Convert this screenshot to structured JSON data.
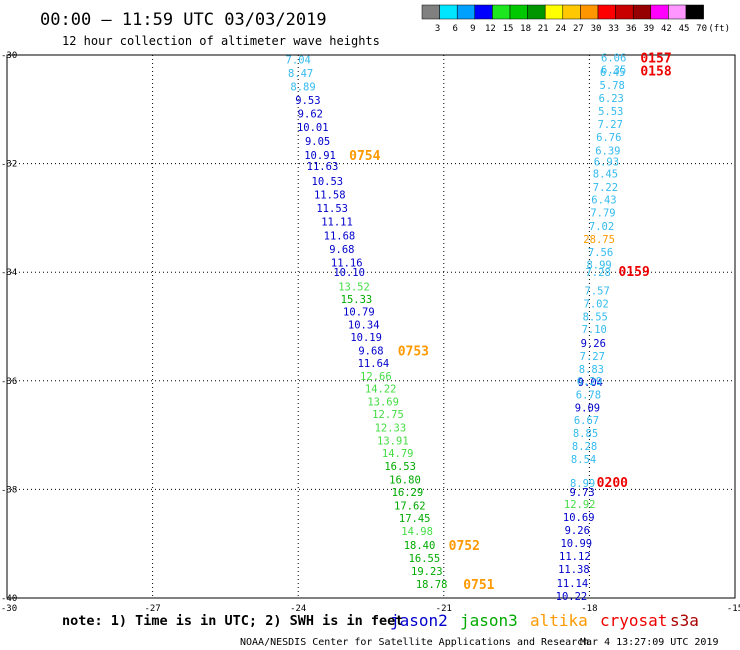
{
  "header": {
    "title": "00:00 – 11:59 UTC 03/03/2019",
    "subtitle": "12 hour collection of altimeter wave heights"
  },
  "color_scale": {
    "labels": [
      "3",
      "6",
      "9",
      "12",
      "15",
      "18",
      "21",
      "24",
      "27",
      "30",
      "33",
      "36",
      "39",
      "42",
      "45",
      "70",
      "(ft)"
    ],
    "colors": [
      "#808080",
      "#00e6ff",
      "#00a0ff",
      "#0000ff",
      "#1ee61e",
      "#00c800",
      "#009600",
      "#ffff00",
      "#ffc800",
      "#ff9600",
      "#ff0000",
      "#c80000",
      "#960000",
      "#ff00ff",
      "#ff96ff",
      "#000000"
    ]
  },
  "footer": {
    "note": "note: 1) Time is in UTC; 2) SWH is in feet",
    "legend": [
      {
        "label": "jason2",
        "color": "#0000cc"
      },
      {
        "label": "jason3",
        "color": "#00aa00"
      },
      {
        "label": "altika",
        "color": "#ff9900"
      },
      {
        "label": "cryosat",
        "color": "#ee0000"
      },
      {
        "label": "s3a",
        "color": "#aa0000"
      }
    ],
    "credit": "NOAA/NESDIS Center for Satellite Applications and Research",
    "timestamp": "Mar 4 13:27:09 UTC 2019"
  },
  "chart_data": {
    "type": "scatter",
    "xlim": [
      -30,
      -15
    ],
    "ylim": [
      -40,
      -30
    ],
    "x_ticks": [
      "-30",
      "-27",
      "-24",
      "-21",
      "-18",
      "-15"
    ],
    "y_ticks": [
      "-30",
      "-32",
      "-34",
      "-36",
      "-38",
      "-40"
    ],
    "grid": true,
    "series": [
      {
        "name": "track-west",
        "points": [
          {
            "x": -24.0,
            "y": -30.08,
            "v": "7.04",
            "c": "#33bbee"
          },
          {
            "x": -23.95,
            "y": -30.33,
            "v": "8.47",
            "c": "#33bbee"
          },
          {
            "x": -23.9,
            "y": -30.58,
            "v": "8.89",
            "c": "#33bbee"
          },
          {
            "x": -23.8,
            "y": -30.83,
            "v": "9.53",
            "c": "#0000cc"
          },
          {
            "x": -23.75,
            "y": -31.08,
            "v": "9.62",
            "c": "#0000cc"
          },
          {
            "x": -23.7,
            "y": -31.33,
            "v": "10.01",
            "c": "#0000cc"
          },
          {
            "x": -23.6,
            "y": -31.58,
            "v": "9.05",
            "c": "#0000cc"
          },
          {
            "x": -23.55,
            "y": -31.84,
            "v": "10.91",
            "c": "#0000cc"
          },
          {
            "x": -23.5,
            "y": -32.04,
            "v": "11.63",
            "c": "#0000cc"
          },
          {
            "x": -23.4,
            "y": -32.32,
            "v": "10.53",
            "c": "#0000cc"
          },
          {
            "x": -23.35,
            "y": -32.57,
            "v": "11.58",
            "c": "#0000cc"
          },
          {
            "x": -23.3,
            "y": -32.82,
            "v": "11.53",
            "c": "#0000cc"
          },
          {
            "x": -23.2,
            "y": -33.07,
            "v": "11.11",
            "c": "#0000cc"
          },
          {
            "x": -23.15,
            "y": -33.32,
            "v": "11.68",
            "c": "#0000cc"
          },
          {
            "x": -23.1,
            "y": -33.57,
            "v": "9.68",
            "c": "#0000cc"
          },
          {
            "x": -23.0,
            "y": -33.82,
            "v": "11.16",
            "c": "#0000cc"
          },
          {
            "x": -22.95,
            "y": -34.0,
            "v": "10.10",
            "c": "#0000cc"
          },
          {
            "x": -22.85,
            "y": -34.26,
            "v": "13.52",
            "c": "#44dd44"
          },
          {
            "x": -22.8,
            "y": -34.49,
            "v": "15.33",
            "c": "#00aa00"
          },
          {
            "x": -22.75,
            "y": -34.72,
            "v": "10.79",
            "c": "#0000cc"
          },
          {
            "x": -22.65,
            "y": -34.96,
            "v": "10.34",
            "c": "#0000cc"
          },
          {
            "x": -22.6,
            "y": -35.19,
            "v": "10.19",
            "c": "#0000cc"
          },
          {
            "x": -22.5,
            "y": -35.44,
            "v": "9.68",
            "c": "#0000cc"
          },
          {
            "x": -22.45,
            "y": -35.67,
            "v": "11.64",
            "c": "#0000cc"
          },
          {
            "x": -22.4,
            "y": -35.91,
            "v": "12.66",
            "c": "#44dd44"
          },
          {
            "x": -22.3,
            "y": -36.14,
            "v": "14.22",
            "c": "#44dd44"
          },
          {
            "x": -22.25,
            "y": -36.38,
            "v": "13.69",
            "c": "#44dd44"
          },
          {
            "x": -22.15,
            "y": -36.61,
            "v": "12.75",
            "c": "#44dd44"
          },
          {
            "x": -22.1,
            "y": -36.86,
            "v": "12.33",
            "c": "#44dd44"
          },
          {
            "x": -22.05,
            "y": -37.1,
            "v": "13.91",
            "c": "#44dd44"
          },
          {
            "x": -21.95,
            "y": -37.33,
            "v": "14.79",
            "c": "#44dd44"
          },
          {
            "x": -21.9,
            "y": -37.57,
            "v": "16.53",
            "c": "#00aa00"
          },
          {
            "x": -21.8,
            "y": -37.82,
            "v": "16.80",
            "c": "#00aa00"
          },
          {
            "x": -21.75,
            "y": -38.05,
            "v": "16.29",
            "c": "#00aa00"
          },
          {
            "x": -21.7,
            "y": -38.3,
            "v": "17.62",
            "c": "#00aa00"
          },
          {
            "x": -21.6,
            "y": -38.53,
            "v": "17.45",
            "c": "#00aa00"
          },
          {
            "x": -21.55,
            "y": -38.77,
            "v": "14.98",
            "c": "#44dd44"
          },
          {
            "x": -21.5,
            "y": -39.02,
            "v": "18.40",
            "c": "#00aa00"
          },
          {
            "x": -21.4,
            "y": -39.26,
            "v": "16.55",
            "c": "#00aa00"
          },
          {
            "x": -21.35,
            "y": -39.5,
            "v": "19.23",
            "c": "#00aa00"
          },
          {
            "x": -21.25,
            "y": -39.74,
            "v": "18.78",
            "c": "#00aa00"
          }
        ]
      },
      {
        "name": "track-east",
        "points": [
          {
            "x": -17.5,
            "y": -30.05,
            "v": "6.06",
            "c": "#33bbee"
          },
          {
            "x": -17.5,
            "y": -30.27,
            "v": "6.35",
            "c": "#33bbee"
          },
          {
            "x": -17.52,
            "y": -30.31,
            "v": "6.45",
            "c": "#33bbee"
          },
          {
            "x": -17.53,
            "y": -30.55,
            "v": "5.78",
            "c": "#33bbee"
          },
          {
            "x": -17.55,
            "y": -30.79,
            "v": "6.23",
            "c": "#33bbee"
          },
          {
            "x": -17.56,
            "y": -31.03,
            "v": "5.53",
            "c": "#33bbee"
          },
          {
            "x": -17.57,
            "y": -31.27,
            "v": "7.27",
            "c": "#33bbee"
          },
          {
            "x": -17.6,
            "y": -31.51,
            "v": "6.76",
            "c": "#33bbee"
          },
          {
            "x": -17.62,
            "y": -31.76,
            "v": "6.39",
            "c": "#33bbee"
          },
          {
            "x": -17.65,
            "y": -31.96,
            "v": "6.93",
            "c": "#33bbee"
          },
          {
            "x": -17.67,
            "y": -32.18,
            "v": "8.45",
            "c": "#33bbee"
          },
          {
            "x": -17.67,
            "y": -32.43,
            "v": "7.22",
            "c": "#33bbee"
          },
          {
            "x": -17.7,
            "y": -32.66,
            "v": "6.43",
            "c": "#33bbee"
          },
          {
            "x": -17.72,
            "y": -32.9,
            "v": "7.79",
            "c": "#33bbee"
          },
          {
            "x": -17.75,
            "y": -33.15,
            "v": "7.02",
            "c": "#33bbee"
          },
          {
            "x": -17.8,
            "y": -33.39,
            "v": "28.75",
            "c": "#ff9900"
          },
          {
            "x": -17.77,
            "y": -33.63,
            "v": "7.56",
            "c": "#33bbee"
          },
          {
            "x": -17.8,
            "y": -33.86,
            "v": "8.99",
            "c": "#33bbee"
          },
          {
            "x": -17.82,
            "y": -34.0,
            "v": "7.28",
            "c": "#33bbee"
          },
          {
            "x": -17.84,
            "y": -34.34,
            "v": "7.57",
            "c": "#33bbee"
          },
          {
            "x": -17.86,
            "y": -34.58,
            "v": "7.02",
            "c": "#33bbee"
          },
          {
            "x": -17.88,
            "y": -34.82,
            "v": "8.55",
            "c": "#33bbee"
          },
          {
            "x": -17.9,
            "y": -35.05,
            "v": "7.10",
            "c": "#33bbee"
          },
          {
            "x": -17.92,
            "y": -35.3,
            "v": "9.26",
            "c": "#0000cc"
          },
          {
            "x": -17.94,
            "y": -35.54,
            "v": "7.27",
            "c": "#33bbee"
          },
          {
            "x": -17.96,
            "y": -35.78,
            "v": "8.83",
            "c": "#33bbee"
          },
          {
            "x": -17.98,
            "y": -36.02,
            "v": "9.04",
            "c": "#0000cc"
          },
          {
            "x": -18.0,
            "y": -36.0,
            "v": "6.29",
            "c": "#33bbee"
          },
          {
            "x": -18.02,
            "y": -36.25,
            "v": "6.78",
            "c": "#33bbee"
          },
          {
            "x": -18.04,
            "y": -36.49,
            "v": "9.09",
            "c": "#0000cc"
          },
          {
            "x": -18.06,
            "y": -36.72,
            "v": "6.67",
            "c": "#33bbee"
          },
          {
            "x": -18.08,
            "y": -36.96,
            "v": "8.85",
            "c": "#33bbee"
          },
          {
            "x": -18.1,
            "y": -37.2,
            "v": "8.28",
            "c": "#33bbee"
          },
          {
            "x": -18.12,
            "y": -37.44,
            "v": "8.54",
            "c": "#33bbee"
          },
          {
            "x": -18.14,
            "y": -37.88,
            "v": "8.99",
            "c": "#33bbee"
          },
          {
            "x": -18.15,
            "y": -38.05,
            "v": "9.73",
            "c": "#0000cc"
          },
          {
            "x": -18.2,
            "y": -38.27,
            "v": "12.92",
            "c": "#44dd44"
          },
          {
            "x": -18.22,
            "y": -38.51,
            "v": "10.69",
            "c": "#0000cc"
          },
          {
            "x": -18.25,
            "y": -38.75,
            "v": "9.26",
            "c": "#0000cc"
          },
          {
            "x": -18.27,
            "y": -38.99,
            "v": "10.99",
            "c": "#0000cc"
          },
          {
            "x": -18.3,
            "y": -39.23,
            "v": "11.12",
            "c": "#0000cc"
          },
          {
            "x": -18.32,
            "y": -39.47,
            "v": "11.38",
            "c": "#0000cc"
          },
          {
            "x": -18.35,
            "y": -39.72,
            "v": "11.14",
            "c": "#0000cc"
          },
          {
            "x": -18.37,
            "y": -39.96,
            "v": "10.22",
            "c": "#0000cc"
          }
        ]
      }
    ],
    "annotations": [
      {
        "text": "0157",
        "x": -16.95,
        "y": -30.05,
        "c": "#ee0000"
      },
      {
        "text": "0158",
        "x": -16.95,
        "y": -30.29,
        "c": "#ee0000"
      },
      {
        "text": "0159",
        "x": -17.4,
        "y": -33.98,
        "c": "#ee0000"
      },
      {
        "text": "0200",
        "x": -17.85,
        "y": -37.86,
        "c": "#ee0000"
      },
      {
        "text": "0754",
        "x": -22.95,
        "y": -31.84,
        "c": "#ff9900"
      },
      {
        "text": "0753",
        "x": -21.95,
        "y": -35.44,
        "c": "#ff9900"
      },
      {
        "text": "0752",
        "x": -20.9,
        "y": -39.02,
        "c": "#ff9900"
      },
      {
        "text": "0751",
        "x": -20.6,
        "y": -39.74,
        "c": "#ff9900"
      }
    ]
  }
}
